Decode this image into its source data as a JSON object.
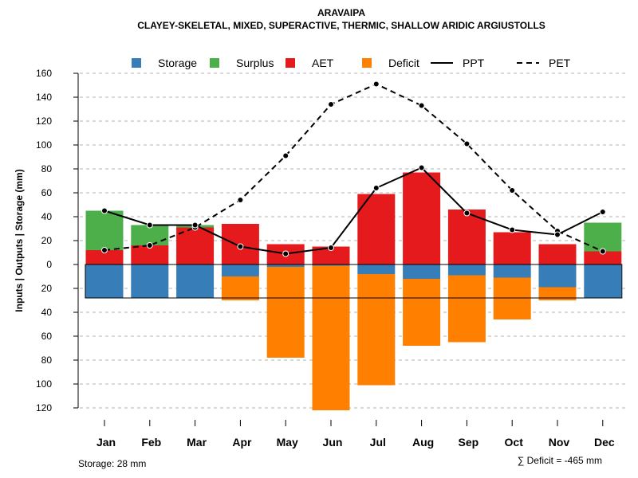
{
  "chart_data": {
    "type": "bar",
    "title": "ARAVAIPA",
    "subtitle": "CLAYEY-SKELETAL, MIXED, SUPERACTIVE, THERMIC, SHALLOW ARIDIC ARGIUSTOLLS",
    "ylabel": "Inputs | Outputs | Storage    (mm)",
    "ylim": [
      -120,
      160
    ],
    "yticks": [
      160,
      140,
      120,
      100,
      80,
      60,
      40,
      20,
      0,
      -20,
      -40,
      -60,
      -80,
      -100,
      -120
    ],
    "ytick_labels": [
      "160",
      "140",
      "120",
      "100",
      "80",
      "60",
      "40",
      "20",
      "0",
      "20",
      "40",
      "60",
      "80",
      "100",
      "120"
    ],
    "categories": [
      "Jan",
      "Feb",
      "Mar",
      "Apr",
      "May",
      "Jun",
      "Jul",
      "Aug",
      "Sep",
      "Oct",
      "Nov",
      "Dec"
    ],
    "legend": [
      {
        "name": "Storage",
        "kind": "box",
        "color": "#377EB8"
      },
      {
        "name": "Surplus",
        "kind": "box",
        "color": "#4DAF4A"
      },
      {
        "name": "AET",
        "kind": "box",
        "color": "#E41A1C"
      },
      {
        "name": "Deficit",
        "kind": "box",
        "color": "#FF7F00"
      },
      {
        "name": "PPT",
        "kind": "solid"
      },
      {
        "name": "PET",
        "kind": "dashed"
      }
    ],
    "aet": [
      12,
      16,
      31,
      34,
      17,
      15,
      59,
      77,
      46,
      27,
      17,
      11
    ],
    "surplus": [
      33,
      17,
      2,
      0,
      0,
      0,
      0,
      0,
      0,
      0,
      0,
      24
    ],
    "storage": [
      28,
      28,
      28,
      10,
      2,
      1,
      8,
      12,
      9,
      11,
      19,
      28
    ],
    "deficit": [
      0,
      0,
      0,
      20,
      76,
      121,
      93,
      56,
      56,
      35,
      11,
      0
    ],
    "ppt": [
      45,
      33,
      33,
      15,
      9,
      14,
      64,
      81,
      43,
      29,
      25,
      44
    ],
    "pet": [
      12,
      16,
      31,
      54,
      91,
      134,
      151,
      133,
      101,
      62,
      28,
      11
    ],
    "storage_capacity": 28,
    "colors": {
      "storage": "#377EB8",
      "surplus": "#4DAF4A",
      "aet": "#E41A1C",
      "deficit": "#FF7F00"
    }
  },
  "footer": {
    "storage_note": "Storage: 28 mm",
    "deficit_note": "∑ Deficit = -465 mm"
  }
}
